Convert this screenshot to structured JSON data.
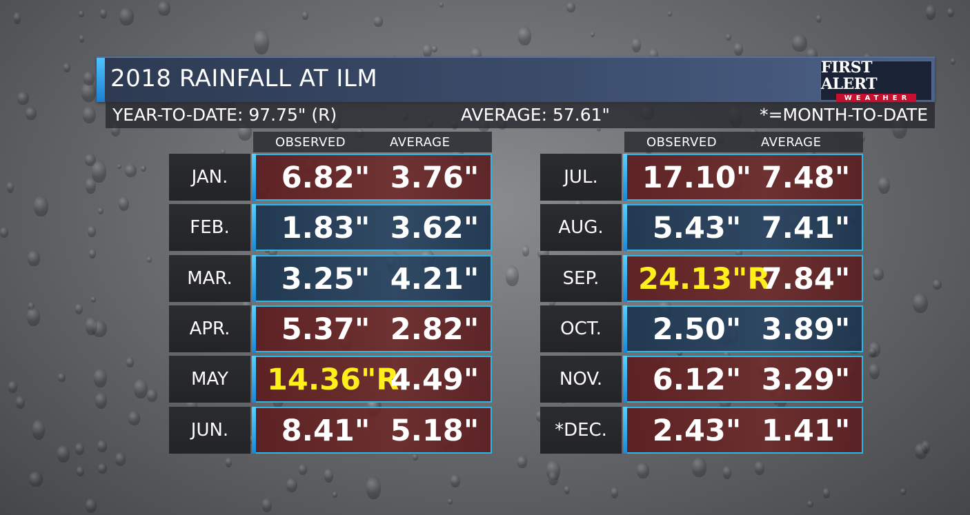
{
  "title": "2018 RAINFALL AT ILM",
  "logo": {
    "top": "FIRST ALERT",
    "bottom": "WEATHER"
  },
  "summary": {
    "year_to_date": "YEAR-TO-DATE: 97.75\" (R)",
    "average": "AVERAGE: 57.61\"",
    "note": "*=MONTH-TO-DATE"
  },
  "columns": {
    "observed": "OBSERVED",
    "average": "AVERAGE"
  },
  "left_months": [
    {
      "month": "JAN.",
      "observed": "6.82\"",
      "average": "3.76\"",
      "tint": "red",
      "record": false
    },
    {
      "month": "FEB.",
      "observed": "1.83\"",
      "average": "3.62\"",
      "tint": "blue",
      "record": false
    },
    {
      "month": "MAR.",
      "observed": "3.25\"",
      "average": "4.21\"",
      "tint": "blue",
      "record": false
    },
    {
      "month": "APR.",
      "observed": "5.37\"",
      "average": "2.82\"",
      "tint": "red",
      "record": false
    },
    {
      "month": "MAY",
      "observed": "14.36\"R",
      "average": "4.49\"",
      "tint": "red",
      "record": true
    },
    {
      "month": "JUN.",
      "observed": "8.41\"",
      "average": "5.18\"",
      "tint": "red",
      "record": false
    }
  ],
  "right_months": [
    {
      "month": "JUL.",
      "observed": "17.10\"",
      "average": "7.48\"",
      "tint": "red",
      "record": false
    },
    {
      "month": "AUG.",
      "observed": "5.43\"",
      "average": "7.41\"",
      "tint": "blue",
      "record": false
    },
    {
      "month": "SEP.",
      "observed": "24.13\"R",
      "average": "7.84\"",
      "tint": "red",
      "record": true
    },
    {
      "month": "OCT.",
      "observed": "2.50\"",
      "average": "3.89\"",
      "tint": "blue",
      "record": false
    },
    {
      "month": "NOV.",
      "observed": "6.12\"",
      "average": "3.29\"",
      "tint": "red",
      "record": false
    },
    {
      "month": "*DEC.",
      "observed": "2.43\"",
      "average": "1.41\"",
      "tint": "red",
      "record": false
    }
  ]
}
